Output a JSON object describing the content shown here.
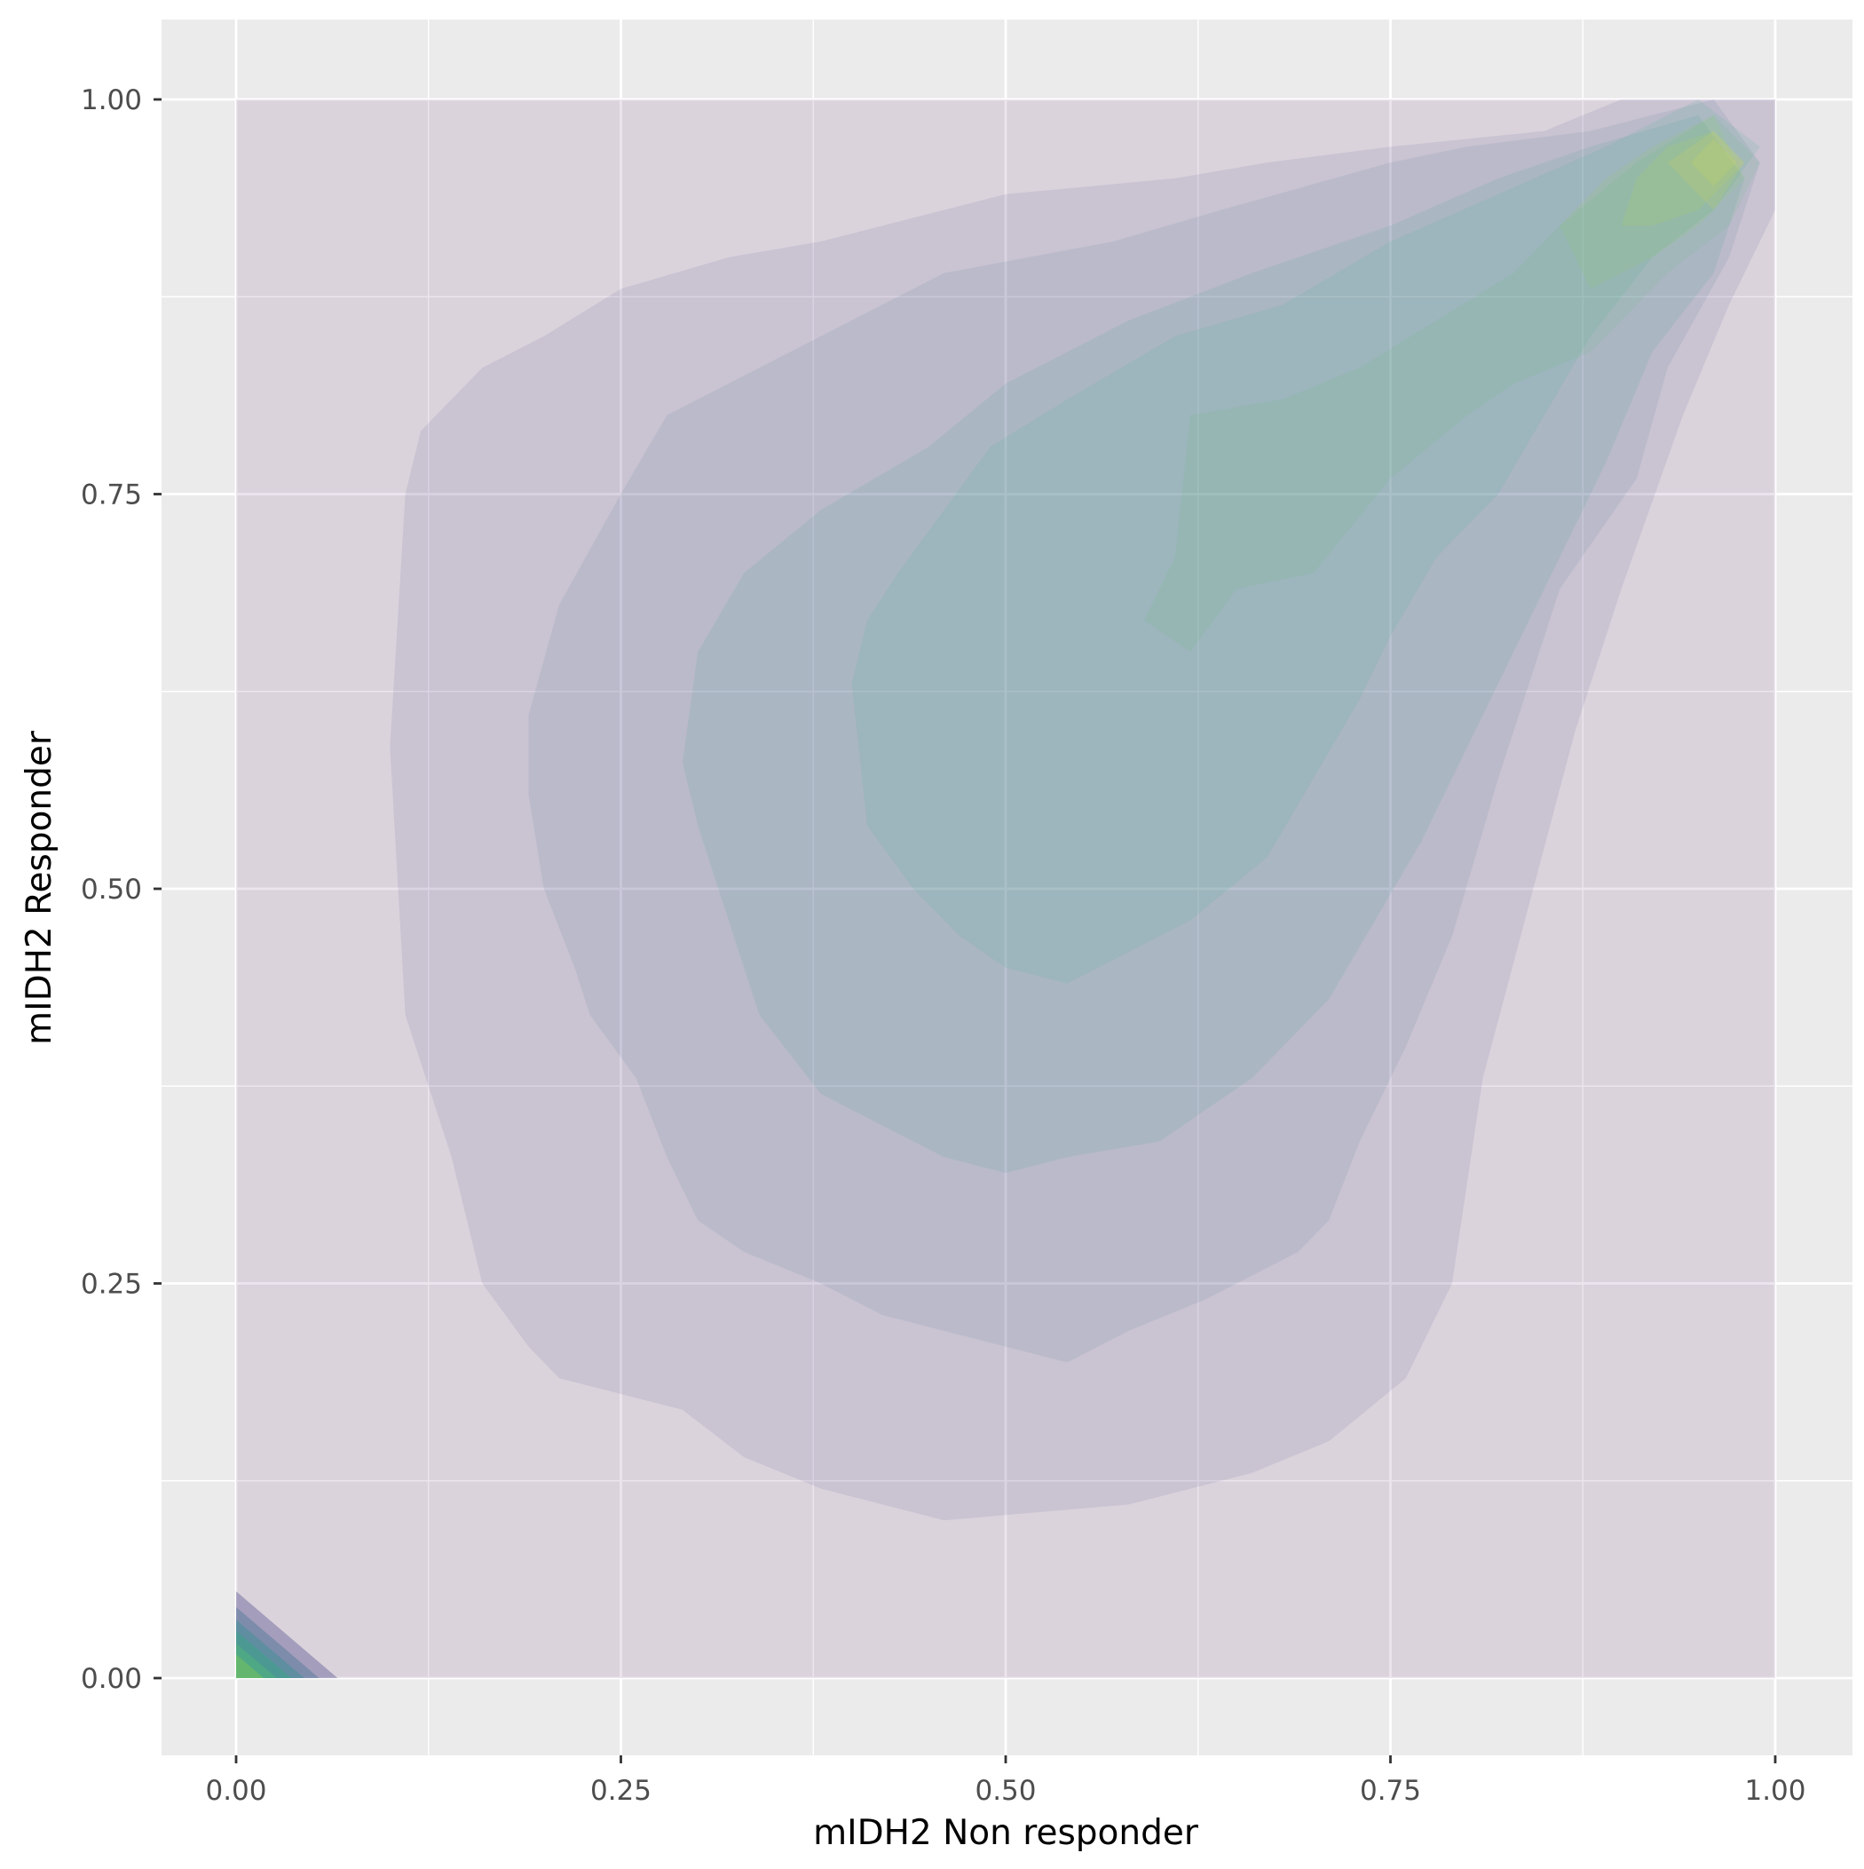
{
  "chart_data": {
    "type": "contour",
    "subtype": "filled 2D density",
    "xlabel": "mIDH2 Non responder",
    "ylabel": "mIDH2 Responder",
    "xlim": [
      -0.05,
      1.05
    ],
    "ylim": [
      -0.05,
      1.05
    ],
    "x_ticks": [
      0.0,
      0.25,
      0.5,
      0.75,
      1.0
    ],
    "x_tick_labels": [
      "0.00",
      "0.25",
      "0.50",
      "0.75",
      "1.00"
    ],
    "y_ticks": [
      0.0,
      0.25,
      0.5,
      0.75,
      1.0
    ],
    "y_tick_labels": [
      "0.00",
      "0.25",
      "0.50",
      "0.75",
      "1.00"
    ],
    "grid": true,
    "legend": "none",
    "colors": {
      "panel": "#ebebeb",
      "grid": "#ffffff",
      "levels": [
        "#440154",
        "#3f3c81",
        "#3a6a8c",
        "#26918d",
        "#2ab07f",
        "#53c26b",
        "#8fd446",
        "#c8e020",
        "#fde725"
      ]
    },
    "fill_alpha": 0.1,
    "contour_levels": [
      {
        "level": 1,
        "color": "#440154",
        "polygons": [
          [
            [
              0.0,
              0.0
            ],
            [
              1.0,
              0.0
            ],
            [
              1.0,
              1.0
            ],
            [
              0.0,
              1.0
            ]
          ]
        ]
      },
      {
        "level": 2,
        "color": "#3f3c81",
        "polygons": [
          [
            [
              0.1,
              0.59
            ],
            [
              0.11,
              0.42
            ],
            [
              0.14,
              0.33
            ],
            [
              0.16,
              0.25
            ],
            [
              0.19,
              0.21
            ],
            [
              0.21,
              0.19
            ],
            [
              0.29,
              0.17
            ],
            [
              0.33,
              0.14
            ],
            [
              0.38,
              0.12
            ],
            [
              0.46,
              0.1
            ],
            [
              0.58,
              0.11
            ],
            [
              0.66,
              0.13
            ],
            [
              0.71,
              0.15
            ],
            [
              0.76,
              0.19
            ],
            [
              0.79,
              0.25
            ],
            [
              0.81,
              0.38
            ],
            [
              0.84,
              0.49
            ],
            [
              0.87,
              0.6
            ],
            [
              0.9,
              0.69
            ],
            [
              0.94,
              0.8
            ],
            [
              0.97,
              0.87
            ],
            [
              1.0,
              0.93
            ],
            [
              1.0,
              1.0
            ],
            [
              0.9,
              1.0
            ],
            [
              0.85,
              0.98
            ],
            [
              0.75,
              0.97
            ],
            [
              0.67,
              0.96
            ],
            [
              0.61,
              0.95
            ],
            [
              0.5,
              0.94
            ],
            [
              0.46,
              0.93
            ],
            [
              0.38,
              0.91
            ],
            [
              0.32,
              0.9
            ],
            [
              0.25,
              0.88
            ],
            [
              0.2,
              0.85
            ],
            [
              0.16,
              0.83
            ],
            [
              0.12,
              0.79
            ],
            [
              0.11,
              0.75
            ]
          ]
        ]
      },
      {
        "level": 3,
        "color": "#3a6a8c",
        "polygons": [
          [
            [
              0.19,
              0.56
            ],
            [
              0.2,
              0.5
            ],
            [
              0.22,
              0.45
            ],
            [
              0.23,
              0.42
            ],
            [
              0.26,
              0.38
            ],
            [
              0.28,
              0.33
            ],
            [
              0.3,
              0.29
            ],
            [
              0.33,
              0.27
            ],
            [
              0.38,
              0.25
            ],
            [
              0.42,
              0.23
            ],
            [
              0.5,
              0.21
            ],
            [
              0.54,
              0.2
            ],
            [
              0.58,
              0.22
            ],
            [
              0.63,
              0.24
            ],
            [
              0.69,
              0.27
            ],
            [
              0.71,
              0.29
            ],
            [
              0.73,
              0.34
            ],
            [
              0.76,
              0.4
            ],
            [
              0.79,
              0.47
            ],
            [
              0.82,
              0.57
            ],
            [
              0.84,
              0.63
            ],
            [
              0.86,
              0.69
            ],
            [
              0.91,
              0.76
            ],
            [
              0.93,
              0.83
            ],
            [
              0.97,
              0.9
            ],
            [
              0.99,
              0.96
            ],
            [
              0.96,
              1.0
            ],
            [
              0.88,
              0.98
            ],
            [
              0.8,
              0.97
            ],
            [
              0.75,
              0.96
            ],
            [
              0.64,
              0.93
            ],
            [
              0.57,
              0.91
            ],
            [
              0.46,
              0.89
            ],
            [
              0.4,
              0.86
            ],
            [
              0.34,
              0.83
            ],
            [
              0.28,
              0.8
            ],
            [
              0.25,
              0.75
            ],
            [
              0.21,
              0.68
            ],
            [
              0.19,
              0.61
            ]
          ]
        ]
      },
      {
        "level": 4,
        "color": "#26918d",
        "polygons": [
          [
            [
              0.29,
              0.58
            ],
            [
              0.3,
              0.54
            ],
            [
              0.32,
              0.48
            ],
            [
              0.34,
              0.42
            ],
            [
              0.38,
              0.37
            ],
            [
              0.42,
              0.35
            ],
            [
              0.46,
              0.33
            ],
            [
              0.5,
              0.32
            ],
            [
              0.54,
              0.33
            ],
            [
              0.6,
              0.34
            ],
            [
              0.66,
              0.38
            ],
            [
              0.71,
              0.43
            ],
            [
              0.74,
              0.48
            ],
            [
              0.77,
              0.53
            ],
            [
              0.8,
              0.59
            ],
            [
              0.83,
              0.65
            ],
            [
              0.86,
              0.71
            ],
            [
              0.89,
              0.77
            ],
            [
              0.92,
              0.84
            ],
            [
              0.96,
              0.89
            ],
            [
              0.98,
              0.95
            ],
            [
              0.95,
              0.99
            ],
            [
              0.88,
              0.97
            ],
            [
              0.82,
              0.95
            ],
            [
              0.75,
              0.92
            ],
            [
              0.66,
              0.89
            ],
            [
              0.58,
              0.86
            ],
            [
              0.5,
              0.82
            ],
            [
              0.45,
              0.78
            ],
            [
              0.38,
              0.74
            ],
            [
              0.33,
              0.7
            ],
            [
              0.3,
              0.65
            ]
          ]
        ]
      },
      {
        "level": 5,
        "color": "#2ab07f",
        "polygons": [
          [
            [
              0.4,
              0.63
            ],
            [
              0.41,
              0.54
            ],
            [
              0.44,
              0.5
            ],
            [
              0.47,
              0.47
            ],
            [
              0.5,
              0.45
            ],
            [
              0.54,
              0.44
            ],
            [
              0.58,
              0.46
            ],
            [
              0.62,
              0.48
            ],
            [
              0.67,
              0.52
            ],
            [
              0.7,
              0.57
            ],
            [
              0.73,
              0.62
            ],
            [
              0.75,
              0.66
            ],
            [
              0.78,
              0.71
            ],
            [
              0.82,
              0.75
            ],
            [
              0.85,
              0.8
            ],
            [
              0.88,
              0.85
            ],
            [
              0.92,
              0.9
            ],
            [
              0.96,
              0.93
            ],
            [
              0.99,
              0.97
            ],
            [
              0.95,
              1.0
            ],
            [
              0.89,
              0.97
            ],
            [
              0.82,
              0.94
            ],
            [
              0.75,
              0.91
            ],
            [
              0.68,
              0.87
            ],
            [
              0.61,
              0.85
            ],
            [
              0.54,
              0.81
            ],
            [
              0.49,
              0.78
            ],
            [
              0.46,
              0.74
            ],
            [
              0.43,
              0.7
            ],
            [
              0.41,
              0.67
            ]
          ]
        ]
      },
      {
        "level": 6,
        "color": "#53c26b",
        "polygons": [
          [
            [
              0.59,
              0.67
            ],
            [
              0.62,
              0.65
            ],
            [
              0.65,
              0.69
            ],
            [
              0.7,
              0.7
            ],
            [
              0.75,
              0.76
            ],
            [
              0.8,
              0.8
            ],
            [
              0.83,
              0.82
            ],
            [
              0.88,
              0.84
            ],
            [
              0.93,
              0.89
            ],
            [
              0.97,
              0.92
            ],
            [
              0.99,
              0.96
            ],
            [
              0.96,
              0.99
            ],
            [
              0.91,
              0.96
            ],
            [
              0.86,
              0.92
            ],
            [
              0.83,
              0.89
            ],
            [
              0.78,
              0.86
            ],
            [
              0.73,
              0.83
            ],
            [
              0.68,
              0.81
            ],
            [
              0.62,
              0.8
            ],
            [
              0.61,
              0.71
            ]
          ]
        ]
      },
      {
        "level": 7,
        "color": "#8fd446",
        "polygons": [
          [
            [
              0.86,
              0.92
            ],
            [
              0.88,
              0.88
            ],
            [
              0.92,
              0.9
            ],
            [
              0.95,
              0.92
            ],
            [
              0.98,
              0.95
            ],
            [
              0.96,
              0.99
            ],
            [
              0.92,
              0.97
            ],
            [
              0.89,
              0.95
            ]
          ]
        ]
      },
      {
        "level": 8,
        "color": "#c8e020",
        "polygons": [
          [
            [
              0.9,
              0.92
            ],
            [
              0.92,
              0.92
            ],
            [
              0.95,
              0.93
            ],
            [
              0.98,
              0.96
            ],
            [
              0.96,
              0.98
            ],
            [
              0.93,
              0.97
            ],
            [
              0.91,
              0.95
            ]
          ]
        ]
      },
      {
        "level": 9,
        "color": "#fde725",
        "polygons": [
          [
            [
              0.93,
              0.96
            ],
            [
              0.96,
              0.93
            ],
            [
              0.98,
              0.96
            ],
            [
              0.96,
              0.98
            ]
          ]
        ]
      },
      {
        "level": 10,
        "color": "#fde725",
        "polygons": [
          [
            [
              0.945,
              0.96
            ],
            [
              0.96,
              0.945
            ],
            [
              0.975,
              0.96
            ],
            [
              0.96,
              0.975
            ]
          ]
        ]
      }
    ],
    "corner_peak": {
      "color_levels": [
        "#3f3c81",
        "#3a6a8c",
        "#26918d",
        "#2ab07f",
        "#53c26b",
        "#8fd446"
      ],
      "extents": [
        0.055,
        0.045,
        0.037,
        0.03,
        0.022,
        0.015
      ]
    }
  }
}
